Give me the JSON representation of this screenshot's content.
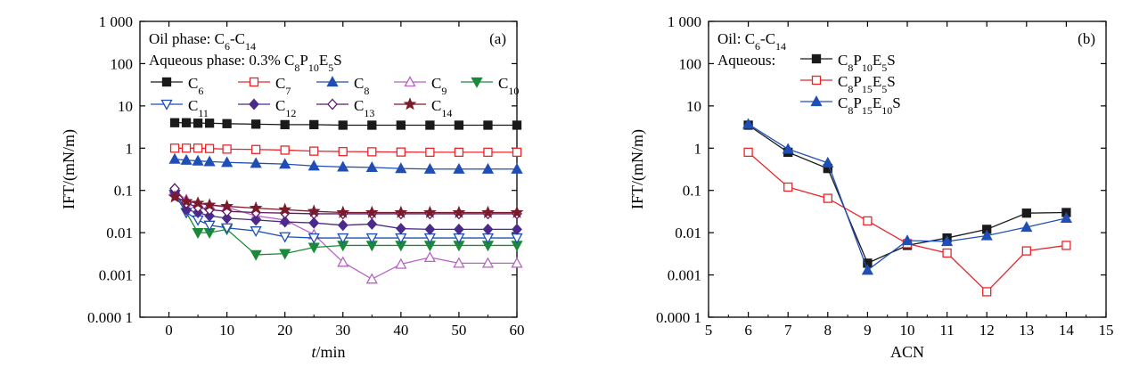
{
  "chart_data": [
    {
      "type": "line",
      "panel_label": "(a)",
      "annotations": [
        {
          "parts": [
            [
              "Oil phase: C",
              ""
            ],
            [
              "6",
              "sub"
            ],
            [
              "-C",
              ""
            ],
            [
              "14",
              "sub"
            ]
          ]
        },
        {
          "parts": [
            [
              "Aqueous phase: 0.3% C",
              ""
            ],
            [
              "8",
              "sub"
            ],
            [
              "P",
              ""
            ],
            [
              "10",
              "sub"
            ],
            [
              "E",
              ""
            ],
            [
              "5",
              "sub"
            ],
            [
              "S",
              ""
            ]
          ]
        }
      ],
      "xlabel": "t/min",
      "ylabel": "IFT/(mN/m)",
      "xlim": [
        -5,
        60
      ],
      "xticks": [
        0,
        10,
        20,
        30,
        40,
        50,
        60
      ],
      "xticklabels": [
        "0",
        "10",
        "20",
        "30",
        "40",
        "50",
        "60"
      ],
      "yscale": "log",
      "ylim": [
        0.0001,
        1000
      ],
      "yticks": [
        1000,
        100,
        10,
        1,
        0.1,
        0.01,
        0.001,
        0.0001
      ],
      "yticklabels": [
        "1 000",
        "100",
        "10",
        "1",
        "0.1",
        "0.01",
        "0.001",
        "0.000 1"
      ],
      "grid": false,
      "legend": "upper-left",
      "series": [
        {
          "name": "C6",
          "base": "C",
          "sub": "6",
          "color": "#1a1a1a",
          "marker": "square",
          "filled": true,
          "x": [
            1,
            3,
            5,
            7,
            10,
            15,
            20,
            25,
            30,
            35,
            40,
            45,
            50,
            55,
            60
          ],
          "y": [
            4.0,
            4.0,
            3.9,
            3.9,
            3.8,
            3.7,
            3.6,
            3.6,
            3.5,
            3.5,
            3.5,
            3.5,
            3.5,
            3.5,
            3.5
          ]
        },
        {
          "name": "C7",
          "base": "C",
          "sub": "7",
          "color": "#e8262b",
          "marker": "square",
          "filled": false,
          "x": [
            1,
            3,
            5,
            7,
            10,
            15,
            20,
            25,
            30,
            35,
            40,
            45,
            50,
            55,
            60
          ],
          "y": [
            1.0,
            1.0,
            1.0,
            0.98,
            0.95,
            0.93,
            0.9,
            0.85,
            0.83,
            0.82,
            0.81,
            0.8,
            0.8,
            0.8,
            0.8
          ]
        },
        {
          "name": "C8",
          "base": "C",
          "sub": "8",
          "color": "#1f4fb5",
          "marker": "triangle",
          "filled": true,
          "x": [
            1,
            3,
            5,
            7,
            10,
            15,
            20,
            25,
            30,
            35,
            40,
            45,
            50,
            55,
            60
          ],
          "y": [
            0.55,
            0.52,
            0.5,
            0.48,
            0.46,
            0.44,
            0.42,
            0.38,
            0.36,
            0.35,
            0.33,
            0.32,
            0.32,
            0.32,
            0.32
          ]
        },
        {
          "name": "C9",
          "base": "C",
          "sub": "9",
          "color": "#b763c4",
          "marker": "triangle",
          "filled": false,
          "x": [
            1,
            3,
            5,
            7,
            10,
            15,
            20,
            25,
            30,
            35,
            40,
            45,
            50,
            55,
            60
          ],
          "y": [
            0.1,
            0.06,
            0.05,
            0.045,
            0.04,
            0.025,
            0.02,
            0.009,
            0.002,
            0.0008,
            0.0018,
            0.0026,
            0.0019,
            0.0019,
            0.0019
          ]
        },
        {
          "name": "C10",
          "base": "C",
          "sub": "10",
          "color": "#1a8a3a",
          "marker": "triangle-down",
          "filled": true,
          "x": [
            1,
            3,
            5,
            7,
            10,
            15,
            20,
            25,
            30,
            35,
            40,
            45,
            50,
            55,
            60
          ],
          "y": [
            0.08,
            0.03,
            0.01,
            0.01,
            0.012,
            0.003,
            0.0032,
            0.0045,
            0.005,
            0.005,
            0.005,
            0.005,
            0.005,
            0.005,
            0.005
          ]
        },
        {
          "name": "C11",
          "base": "C",
          "sub": "11",
          "color": "#1f4fb5",
          "marker": "triangle-down",
          "filled": false,
          "x": [
            1,
            3,
            5,
            7,
            10,
            15,
            20,
            25,
            30,
            35,
            40,
            45,
            50,
            55,
            60
          ],
          "y": [
            0.08,
            0.03,
            0.02,
            0.015,
            0.013,
            0.011,
            0.008,
            0.0075,
            0.0075,
            0.0075,
            0.0075,
            0.0075,
            0.0075,
            0.0075,
            0.0075
          ]
        },
        {
          "name": "C12",
          "base": "C",
          "sub": "12",
          "color": "#4a2a8a",
          "marker": "diamond",
          "filled": true,
          "x": [
            1,
            3,
            5,
            7,
            10,
            15,
            20,
            25,
            30,
            35,
            40,
            45,
            50,
            55,
            60
          ],
          "y": [
            0.09,
            0.035,
            0.03,
            0.025,
            0.022,
            0.02,
            0.018,
            0.017,
            0.015,
            0.016,
            0.0125,
            0.012,
            0.012,
            0.012,
            0.012
          ]
        },
        {
          "name": "C13",
          "base": "C",
          "sub": "13",
          "color": "#5a1a6a",
          "marker": "diamond",
          "filled": false,
          "x": [
            1,
            3,
            5,
            7,
            10,
            15,
            20,
            25,
            30,
            35,
            40,
            45,
            50,
            55,
            60
          ],
          "y": [
            0.11,
            0.05,
            0.04,
            0.035,
            0.032,
            0.03,
            0.029,
            0.028,
            0.028,
            0.028,
            0.028,
            0.028,
            0.028,
            0.028,
            0.028
          ]
        },
        {
          "name": "C14",
          "base": "C",
          "sub": "14",
          "color": "#7a1a2a",
          "marker": "star",
          "filled": true,
          "x": [
            1,
            3,
            5,
            7,
            10,
            15,
            20,
            25,
            30,
            35,
            40,
            45,
            50,
            55,
            60
          ],
          "y": [
            0.07,
            0.055,
            0.05,
            0.045,
            0.042,
            0.038,
            0.035,
            0.032,
            0.03,
            0.03,
            0.03,
            0.03,
            0.03,
            0.03,
            0.03
          ]
        }
      ]
    },
    {
      "type": "line",
      "panel_label": "(b)",
      "annotations": [
        {
          "parts": [
            [
              "Oil: C",
              ""
            ],
            [
              "6",
              "sub"
            ],
            [
              "-C",
              ""
            ],
            [
              "14",
              "sub"
            ]
          ]
        },
        {
          "parts": [
            [
              "Aqueous:",
              ""
            ]
          ]
        }
      ],
      "xlabel": "ACN",
      "ylabel": "IFT/(mN/m)",
      "xlim": [
        5,
        15
      ],
      "xticks": [
        5,
        6,
        7,
        8,
        9,
        10,
        11,
        12,
        13,
        14,
        15
      ],
      "xticklabels": [
        "5",
        "6",
        "7",
        "8",
        "9",
        "10",
        "11",
        "12",
        "13",
        "14",
        "15"
      ],
      "yscale": "log",
      "ylim": [
        0.0001,
        1000
      ],
      "yticks": [
        1000,
        100,
        10,
        1,
        0.1,
        0.01,
        0.001,
        0.0001
      ],
      "yticklabels": [
        "1 000",
        "100",
        "10",
        "1",
        "0.1",
        "0.01",
        "0.001",
        "0.000 1"
      ],
      "grid": false,
      "legend": "upper-left",
      "series": [
        {
          "name": "C8P10E5S",
          "parts": [
            [
              "C",
              ""
            ],
            [
              "8",
              "sub"
            ],
            [
              "P",
              ""
            ],
            [
              "10",
              "sub"
            ],
            [
              "E",
              ""
            ],
            [
              "5",
              "sub"
            ],
            [
              "S",
              ""
            ]
          ],
          "color": "#1a1a1a",
          "marker": "square",
          "filled": true,
          "x": [
            6,
            7,
            8,
            9,
            10,
            11,
            12,
            13,
            14
          ],
          "y": [
            3.5,
            0.8,
            0.33,
            0.0019,
            0.005,
            0.0075,
            0.012,
            0.029,
            0.03
          ]
        },
        {
          "name": "C8P15E5S",
          "parts": [
            [
              "C",
              ""
            ],
            [
              "8",
              "sub"
            ],
            [
              "P",
              ""
            ],
            [
              "15",
              "sub"
            ],
            [
              "E",
              ""
            ],
            [
              "5",
              "sub"
            ],
            [
              "S",
              ""
            ]
          ],
          "color": "#e8262b",
          "marker": "square",
          "filled": false,
          "x": [
            6,
            7,
            8,
            9,
            10,
            11,
            12,
            13,
            14
          ],
          "y": [
            0.8,
            0.12,
            0.065,
            0.019,
            0.0055,
            0.0033,
            0.0004,
            0.0037,
            0.005
          ]
        },
        {
          "name": "C8P15E10S",
          "parts": [
            [
              "C",
              ""
            ],
            [
              "8",
              "sub"
            ],
            [
              "P",
              ""
            ],
            [
              "15",
              "sub"
            ],
            [
              "E",
              ""
            ],
            [
              "10",
              "sub"
            ],
            [
              "S",
              ""
            ]
          ],
          "color": "#1f4fb5",
          "marker": "triangle",
          "filled": true,
          "x": [
            6,
            7,
            8,
            9,
            10,
            11,
            12,
            13,
            14
          ],
          "y": [
            3.7,
            0.95,
            0.45,
            0.0013,
            0.0065,
            0.0062,
            0.0085,
            0.0135,
            0.022
          ]
        }
      ]
    }
  ]
}
